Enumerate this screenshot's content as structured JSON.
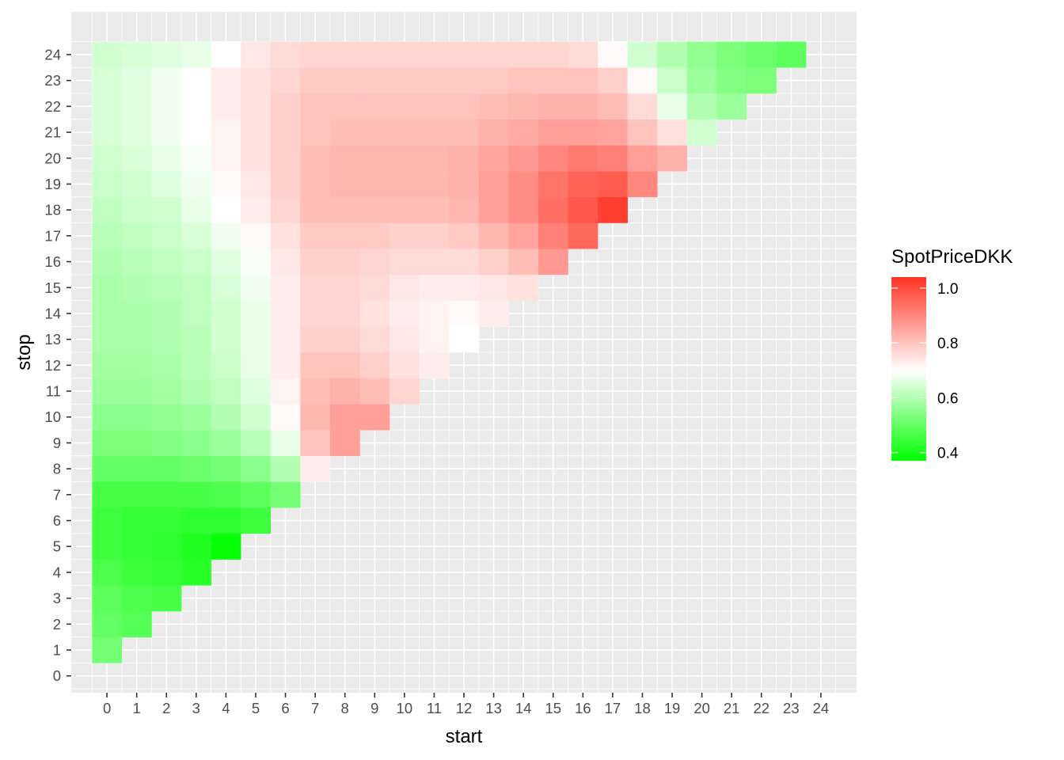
{
  "chart_data": {
    "type": "heatmap",
    "title": "",
    "xlabel": "start",
    "ylabel": "stop",
    "x_ticks": [
      "0",
      "1",
      "2",
      "3",
      "4",
      "5",
      "6",
      "7",
      "8",
      "9",
      "10",
      "11",
      "12",
      "13",
      "14",
      "15",
      "16",
      "17",
      "18",
      "19",
      "20",
      "21",
      "22",
      "23",
      "24"
    ],
    "y_ticks": [
      "0",
      "1",
      "2",
      "3",
      "4",
      "5",
      "6",
      "7",
      "8",
      "9",
      "10",
      "11",
      "12",
      "13",
      "14",
      "15",
      "16",
      "17",
      "18",
      "19",
      "20",
      "21",
      "22",
      "23",
      "24"
    ],
    "xlim": [
      -1.2,
      25.2
    ],
    "ylim": [
      -0.65,
      25.65
    ],
    "grid": true,
    "legend": {
      "title": "SpotPriceDKK",
      "position": "right",
      "breaks": [
        "0.4",
        "0.6",
        "0.8",
        "1.0"
      ],
      "break_values": [
        0.4,
        0.6,
        0.8,
        1.0
      ],
      "limits": [
        0.37,
        1.04
      ],
      "colors": {
        "low": "#00ff00",
        "mid": "#ffffff",
        "high": "#ff3322"
      },
      "midpoint": 0.7
    },
    "rows": [
      {
        "stop": 1,
        "values": [
          0.52
        ]
      },
      {
        "stop": 2,
        "values": [
          0.5,
          0.48
        ]
      },
      {
        "stop": 3,
        "values": [
          0.49,
          0.47,
          0.46
        ]
      },
      {
        "stop": 4,
        "values": [
          0.47,
          0.45,
          0.44,
          0.42
        ]
      },
      {
        "stop": 5,
        "values": [
          0.45,
          0.44,
          0.43,
          0.41,
          0.38
        ]
      },
      {
        "stop": 6,
        "values": [
          0.45,
          0.44,
          0.44,
          0.43,
          0.43,
          0.45
        ]
      },
      {
        "stop": 7,
        "values": [
          0.46,
          0.46,
          0.46,
          0.46,
          0.47,
          0.49,
          0.52
        ]
      },
      {
        "stop": 8,
        "values": [
          0.5,
          0.5,
          0.5,
          0.51,
          0.52,
          0.55,
          0.6,
          0.73
        ]
      },
      {
        "stop": 9,
        "values": [
          0.53,
          0.53,
          0.54,
          0.55,
          0.57,
          0.61,
          0.67,
          0.8,
          0.86
        ]
      },
      {
        "stop": 10,
        "values": [
          0.55,
          0.55,
          0.56,
          0.57,
          0.6,
          0.64,
          0.71,
          0.82,
          0.86,
          0.86
        ]
      },
      {
        "stop": 11,
        "values": [
          0.57,
          0.57,
          0.58,
          0.6,
          0.62,
          0.66,
          0.72,
          0.81,
          0.83,
          0.81,
          0.77
        ]
      },
      {
        "stop": 12,
        "values": [
          0.58,
          0.58,
          0.59,
          0.61,
          0.63,
          0.67,
          0.73,
          0.8,
          0.8,
          0.78,
          0.75,
          0.73
        ]
      },
      {
        "stop": 13,
        "values": [
          0.59,
          0.59,
          0.6,
          0.61,
          0.64,
          0.67,
          0.73,
          0.78,
          0.78,
          0.76,
          0.74,
          0.72,
          0.7
        ]
      },
      {
        "stop": 14,
        "values": [
          0.59,
          0.59,
          0.6,
          0.62,
          0.64,
          0.67,
          0.73,
          0.77,
          0.77,
          0.75,
          0.73,
          0.72,
          0.71,
          0.73
        ]
      },
      {
        "stop": 15,
        "values": [
          0.59,
          0.6,
          0.61,
          0.62,
          0.65,
          0.68,
          0.73,
          0.77,
          0.77,
          0.76,
          0.74,
          0.73,
          0.73,
          0.74,
          0.75
        ]
      },
      {
        "stop": 16,
        "values": [
          0.6,
          0.61,
          0.62,
          0.63,
          0.66,
          0.69,
          0.74,
          0.78,
          0.78,
          0.77,
          0.76,
          0.76,
          0.76,
          0.78,
          0.81,
          0.87
        ]
      },
      {
        "stop": 17,
        "values": [
          0.61,
          0.62,
          0.63,
          0.65,
          0.68,
          0.71,
          0.75,
          0.79,
          0.79,
          0.79,
          0.78,
          0.78,
          0.79,
          0.82,
          0.85,
          0.91,
          0.95
        ]
      },
      {
        "stop": 18,
        "values": [
          0.62,
          0.63,
          0.64,
          0.67,
          0.7,
          0.73,
          0.77,
          0.81,
          0.81,
          0.81,
          0.81,
          0.81,
          0.82,
          0.86,
          0.89,
          0.94,
          0.98,
          1.02
        ]
      },
      {
        "stop": 19,
        "values": [
          0.63,
          0.64,
          0.66,
          0.68,
          0.71,
          0.74,
          0.78,
          0.81,
          0.82,
          0.82,
          0.82,
          0.82,
          0.83,
          0.86,
          0.89,
          0.93,
          0.96,
          0.97,
          0.9
        ]
      },
      {
        "stop": 20,
        "values": [
          0.64,
          0.65,
          0.67,
          0.69,
          0.72,
          0.75,
          0.78,
          0.81,
          0.82,
          0.82,
          0.82,
          0.82,
          0.83,
          0.85,
          0.87,
          0.9,
          0.92,
          0.91,
          0.86,
          0.83
        ]
      },
      {
        "stop": 21,
        "values": [
          0.65,
          0.66,
          0.68,
          0.7,
          0.72,
          0.75,
          0.78,
          0.8,
          0.81,
          0.81,
          0.81,
          0.81,
          0.81,
          0.83,
          0.84,
          0.86,
          0.86,
          0.85,
          0.8,
          0.75,
          0.64
        ]
      },
      {
        "stop": 22,
        "values": [
          0.65,
          0.66,
          0.68,
          0.7,
          0.73,
          0.75,
          0.78,
          0.8,
          0.8,
          0.8,
          0.8,
          0.8,
          0.8,
          0.81,
          0.82,
          0.83,
          0.83,
          0.81,
          0.76,
          0.67,
          0.6,
          0.57
        ]
      },
      {
        "stop": 23,
        "values": [
          0.65,
          0.66,
          0.68,
          0.7,
          0.73,
          0.75,
          0.77,
          0.79,
          0.79,
          0.79,
          0.79,
          0.79,
          0.79,
          0.79,
          0.8,
          0.8,
          0.8,
          0.78,
          0.71,
          0.63,
          0.57,
          0.54,
          0.53
        ]
      },
      {
        "stop": 24,
        "values": [
          0.64,
          0.65,
          0.66,
          0.67,
          0.7,
          0.74,
          0.76,
          0.77,
          0.77,
          0.77,
          0.77,
          0.77,
          0.77,
          0.77,
          0.77,
          0.77,
          0.76,
          0.71,
          0.64,
          0.6,
          0.56,
          0.53,
          0.51,
          0.49
        ]
      }
    ]
  }
}
